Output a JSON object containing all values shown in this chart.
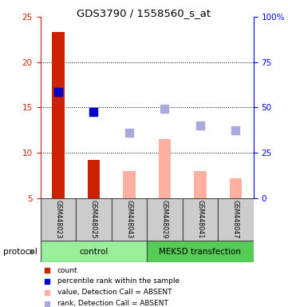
{
  "title": "GDS3790 / 1558560_s_at",
  "samples": [
    "GSM448023",
    "GSM448025",
    "GSM448043",
    "GSM448029",
    "GSM448041",
    "GSM448047"
  ],
  "red_bars": [
    23.3,
    9.2,
    null,
    null,
    null,
    null
  ],
  "pink_bars": [
    null,
    null,
    8.0,
    11.5,
    8.0,
    7.2
  ],
  "blue_squares": [
    16.7,
    14.5,
    null,
    null,
    null,
    null
  ],
  "lavender_squares": [
    null,
    null,
    12.2,
    14.9,
    13.0,
    12.5
  ],
  "ylim_left": [
    5,
    25
  ],
  "ylim_right": [
    0,
    100
  ],
  "yticks_left": [
    5,
    10,
    15,
    20,
    25
  ],
  "ytick_labels_right": [
    "0",
    "25",
    "50",
    "75",
    "100%"
  ],
  "red_color": "#CC2200",
  "pink_color": "#FFB0A0",
  "blue_color": "#0000CC",
  "lavender_color": "#AAAADD",
  "sample_box_color": "#CCCCCC",
  "group_info": [
    {
      "start": 0,
      "end": 3,
      "label": "control",
      "color": "#99EE99"
    },
    {
      "start": 3,
      "end": 6,
      "label": "MEK5D transfection",
      "color": "#55CC55"
    }
  ],
  "legend_items": [
    {
      "color": "#CC2200",
      "label": "count"
    },
    {
      "color": "#0000CC",
      "label": "percentile rank within the sample"
    },
    {
      "color": "#FFB0A0",
      "label": "value, Detection Call = ABSENT"
    },
    {
      "color": "#AAAADD",
      "label": "rank, Detection Call = ABSENT"
    }
  ]
}
